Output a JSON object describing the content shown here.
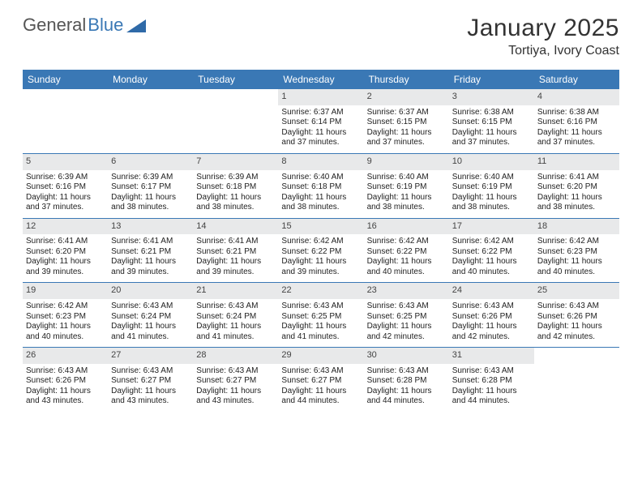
{
  "brand": {
    "part1": "General",
    "part2": "Blue"
  },
  "logo_colors": {
    "text1": "#555555",
    "text2": "#3a78b5",
    "triangle": "#2f6aa8"
  },
  "title": "January 2025",
  "location": "Tortiya, Ivory Coast",
  "header_bar_color": "#3a78b5",
  "daynum_bg": "#e8e9ea",
  "day_names": [
    "Sunday",
    "Monday",
    "Tuesday",
    "Wednesday",
    "Thursday",
    "Friday",
    "Saturday"
  ],
  "weeks": [
    [
      {
        "empty": true
      },
      {
        "empty": true
      },
      {
        "empty": true
      },
      {
        "day": "1",
        "sunrise": "6:37 AM",
        "sunset": "6:14 PM",
        "daylight": "11 hours and 37 minutes."
      },
      {
        "day": "2",
        "sunrise": "6:37 AM",
        "sunset": "6:15 PM",
        "daylight": "11 hours and 37 minutes."
      },
      {
        "day": "3",
        "sunrise": "6:38 AM",
        "sunset": "6:15 PM",
        "daylight": "11 hours and 37 minutes."
      },
      {
        "day": "4",
        "sunrise": "6:38 AM",
        "sunset": "6:16 PM",
        "daylight": "11 hours and 37 minutes."
      }
    ],
    [
      {
        "day": "5",
        "sunrise": "6:39 AM",
        "sunset": "6:16 PM",
        "daylight": "11 hours and 37 minutes."
      },
      {
        "day": "6",
        "sunrise": "6:39 AM",
        "sunset": "6:17 PM",
        "daylight": "11 hours and 38 minutes."
      },
      {
        "day": "7",
        "sunrise": "6:39 AM",
        "sunset": "6:18 PM",
        "daylight": "11 hours and 38 minutes."
      },
      {
        "day": "8",
        "sunrise": "6:40 AM",
        "sunset": "6:18 PM",
        "daylight": "11 hours and 38 minutes."
      },
      {
        "day": "9",
        "sunrise": "6:40 AM",
        "sunset": "6:19 PM",
        "daylight": "11 hours and 38 minutes."
      },
      {
        "day": "10",
        "sunrise": "6:40 AM",
        "sunset": "6:19 PM",
        "daylight": "11 hours and 38 minutes."
      },
      {
        "day": "11",
        "sunrise": "6:41 AM",
        "sunset": "6:20 PM",
        "daylight": "11 hours and 38 minutes."
      }
    ],
    [
      {
        "day": "12",
        "sunrise": "6:41 AM",
        "sunset": "6:20 PM",
        "daylight": "11 hours and 39 minutes."
      },
      {
        "day": "13",
        "sunrise": "6:41 AM",
        "sunset": "6:21 PM",
        "daylight": "11 hours and 39 minutes."
      },
      {
        "day": "14",
        "sunrise": "6:41 AM",
        "sunset": "6:21 PM",
        "daylight": "11 hours and 39 minutes."
      },
      {
        "day": "15",
        "sunrise": "6:42 AM",
        "sunset": "6:22 PM",
        "daylight": "11 hours and 39 minutes."
      },
      {
        "day": "16",
        "sunrise": "6:42 AM",
        "sunset": "6:22 PM",
        "daylight": "11 hours and 40 minutes."
      },
      {
        "day": "17",
        "sunrise": "6:42 AM",
        "sunset": "6:22 PM",
        "daylight": "11 hours and 40 minutes."
      },
      {
        "day": "18",
        "sunrise": "6:42 AM",
        "sunset": "6:23 PM",
        "daylight": "11 hours and 40 minutes."
      }
    ],
    [
      {
        "day": "19",
        "sunrise": "6:42 AM",
        "sunset": "6:23 PM",
        "daylight": "11 hours and 40 minutes."
      },
      {
        "day": "20",
        "sunrise": "6:43 AM",
        "sunset": "6:24 PM",
        "daylight": "11 hours and 41 minutes."
      },
      {
        "day": "21",
        "sunrise": "6:43 AM",
        "sunset": "6:24 PM",
        "daylight": "11 hours and 41 minutes."
      },
      {
        "day": "22",
        "sunrise": "6:43 AM",
        "sunset": "6:25 PM",
        "daylight": "11 hours and 41 minutes."
      },
      {
        "day": "23",
        "sunrise": "6:43 AM",
        "sunset": "6:25 PM",
        "daylight": "11 hours and 42 minutes."
      },
      {
        "day": "24",
        "sunrise": "6:43 AM",
        "sunset": "6:26 PM",
        "daylight": "11 hours and 42 minutes."
      },
      {
        "day": "25",
        "sunrise": "6:43 AM",
        "sunset": "6:26 PM",
        "daylight": "11 hours and 42 minutes."
      }
    ],
    [
      {
        "day": "26",
        "sunrise": "6:43 AM",
        "sunset": "6:26 PM",
        "daylight": "11 hours and 43 minutes."
      },
      {
        "day": "27",
        "sunrise": "6:43 AM",
        "sunset": "6:27 PM",
        "daylight": "11 hours and 43 minutes."
      },
      {
        "day": "28",
        "sunrise": "6:43 AM",
        "sunset": "6:27 PM",
        "daylight": "11 hours and 43 minutes."
      },
      {
        "day": "29",
        "sunrise": "6:43 AM",
        "sunset": "6:27 PM",
        "daylight": "11 hours and 44 minutes."
      },
      {
        "day": "30",
        "sunrise": "6:43 AM",
        "sunset": "6:28 PM",
        "daylight": "11 hours and 44 minutes."
      },
      {
        "day": "31",
        "sunrise": "6:43 AM",
        "sunset": "6:28 PM",
        "daylight": "11 hours and 44 minutes."
      },
      {
        "empty": true
      }
    ]
  ],
  "labels": {
    "sunrise": "Sunrise:",
    "sunset": "Sunset:",
    "daylight": "Daylight:"
  }
}
